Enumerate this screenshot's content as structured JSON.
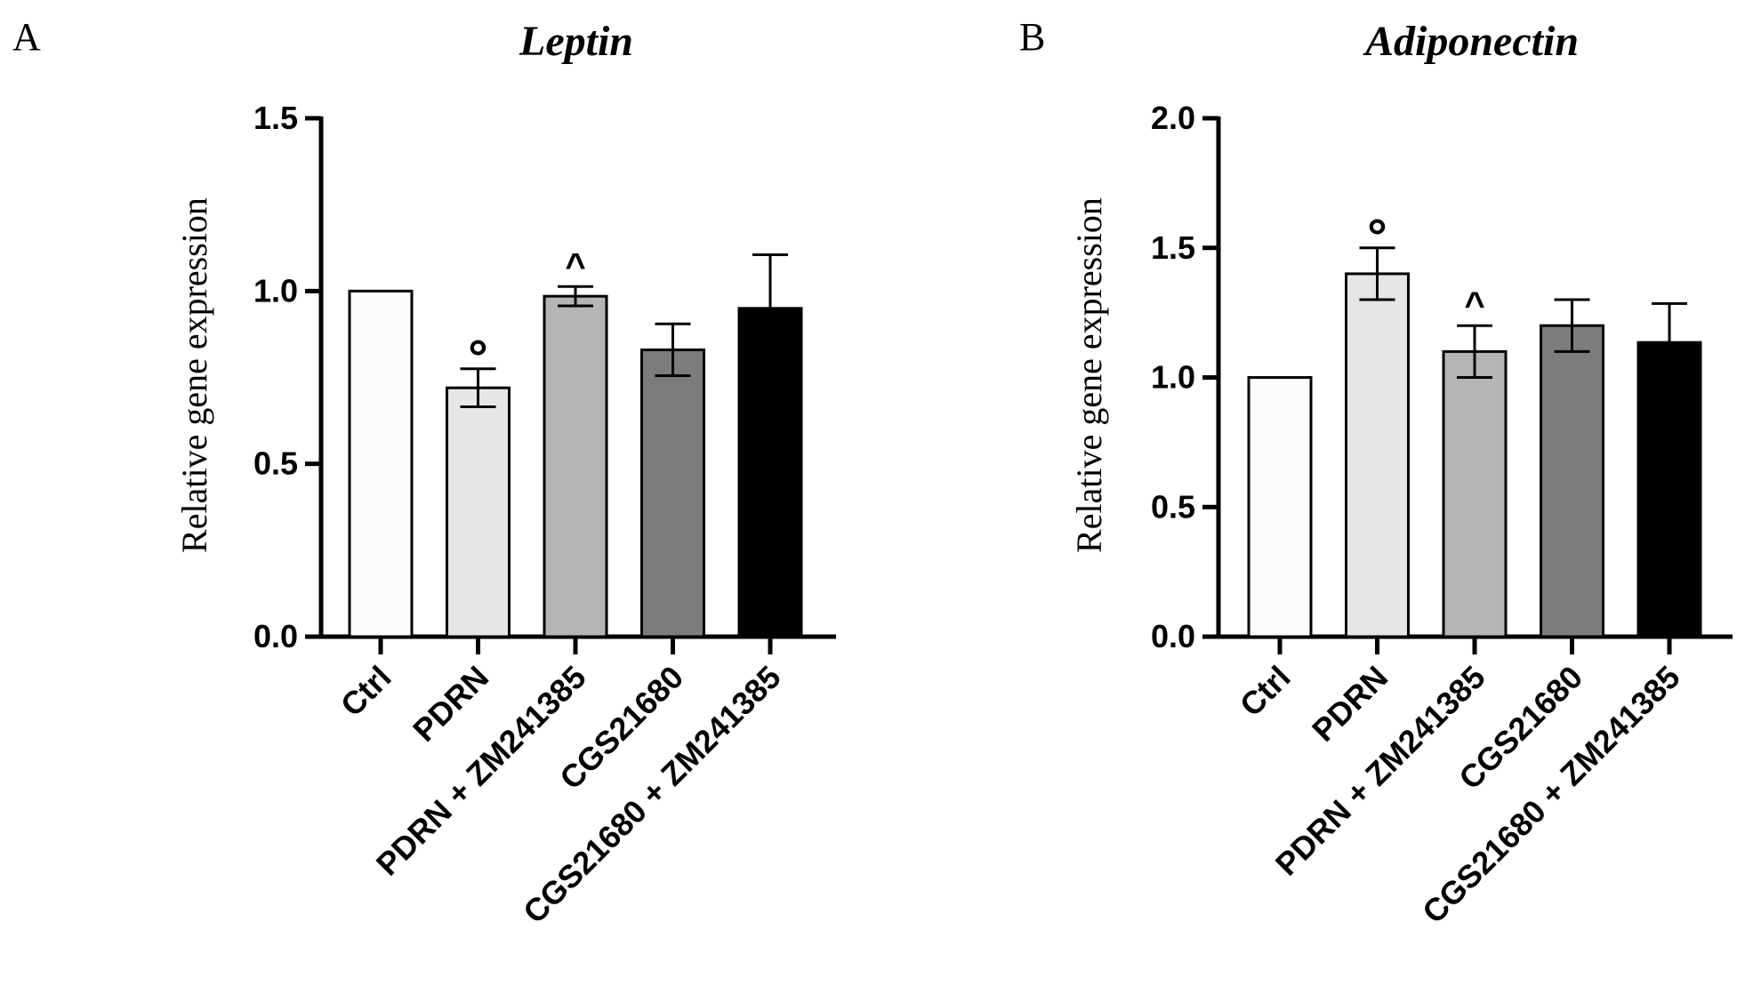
{
  "chart_data": [
    {
      "type": "bar",
      "panel": "A",
      "title": "Leptin",
      "ylabel": "Relative gene expression",
      "xlabel": "",
      "ylim": [
        0,
        1.5
      ],
      "yticks": [
        "0.0",
        "0.5",
        "1.0",
        "1.5"
      ],
      "categories": [
        "Ctrl",
        "PDRN",
        "PDRN + ZM241385",
        "CGS21680",
        "CGS21680 + ZM241385"
      ],
      "values": [
        1.0,
        0.72,
        0.985,
        0.83,
        0.95
      ],
      "errors": [
        0,
        0.055,
        0.028,
        0.075,
        0.155
      ],
      "colors": [
        "#fcfcfc",
        "#e6e6e6",
        "#b5b5b5",
        "#7c7c7c",
        "#000000"
      ],
      "annotations": [
        {
          "category": "PDRN",
          "symbol": "°"
        },
        {
          "category": "PDRN + ZM241385",
          "symbol": "^"
        }
      ]
    },
    {
      "type": "bar",
      "panel": "B",
      "title": "Adiponectin",
      "ylabel": "Relative gene expression",
      "xlabel": "",
      "ylim": [
        0,
        2.0
      ],
      "yticks": [
        "0.0",
        "0.5",
        "1.0",
        "1.5",
        "2.0"
      ],
      "categories": [
        "Ctrl",
        "PDRN",
        "PDRN + ZM241385",
        "CGS21680",
        "CGS21680 + ZM241385"
      ],
      "values": [
        1.0,
        1.4,
        1.1,
        1.2,
        1.135
      ],
      "errors": [
        0,
        0.1,
        0.1,
        0.1,
        0.15
      ],
      "colors": [
        "#fcfcfc",
        "#e6e6e6",
        "#b5b5b5",
        "#7c7c7c",
        "#000000"
      ],
      "annotations": [
        {
          "category": "PDRN",
          "symbol": "°"
        },
        {
          "category": "PDRN + ZM241385",
          "symbol": "^"
        }
      ]
    }
  ]
}
